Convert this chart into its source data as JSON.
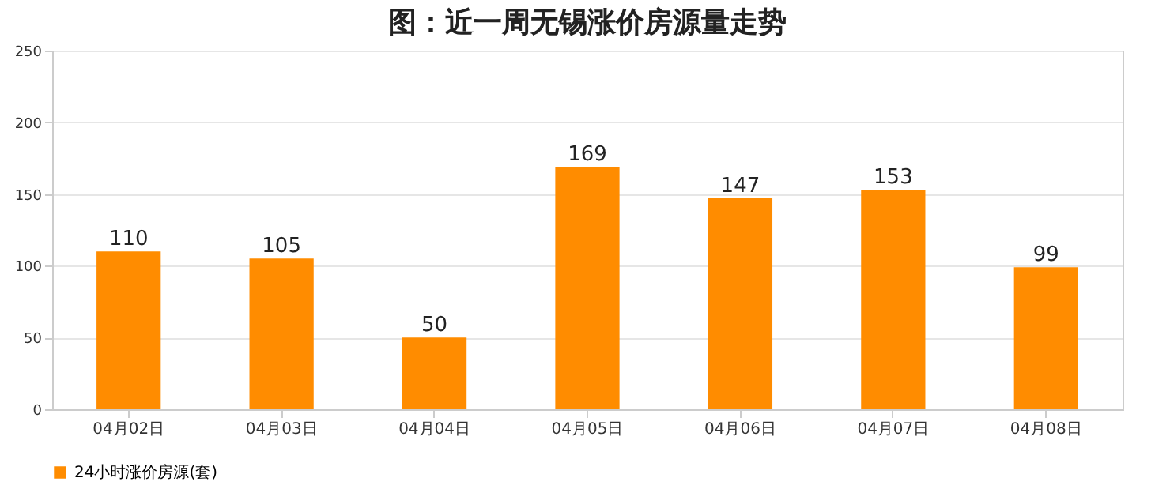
{
  "chart_data": {
    "type": "bar",
    "title": "图：近一周无锡涨价房源量走势",
    "categories": [
      "04月02日",
      "04月03日",
      "04月04日",
      "04月05日",
      "04月06日",
      "04月07日",
      "04月08日"
    ],
    "series": [
      {
        "name": "24小时涨价房源(套)",
        "color": "#ff8c00",
        "values": [
          110,
          105,
          50,
          169,
          147,
          153,
          99
        ]
      }
    ],
    "ylim": [
      0,
      250
    ],
    "yticks": [
      0,
      50,
      100,
      150,
      200,
      250
    ],
    "grid": "y",
    "legend": "bottom",
    "data_labels": true
  }
}
